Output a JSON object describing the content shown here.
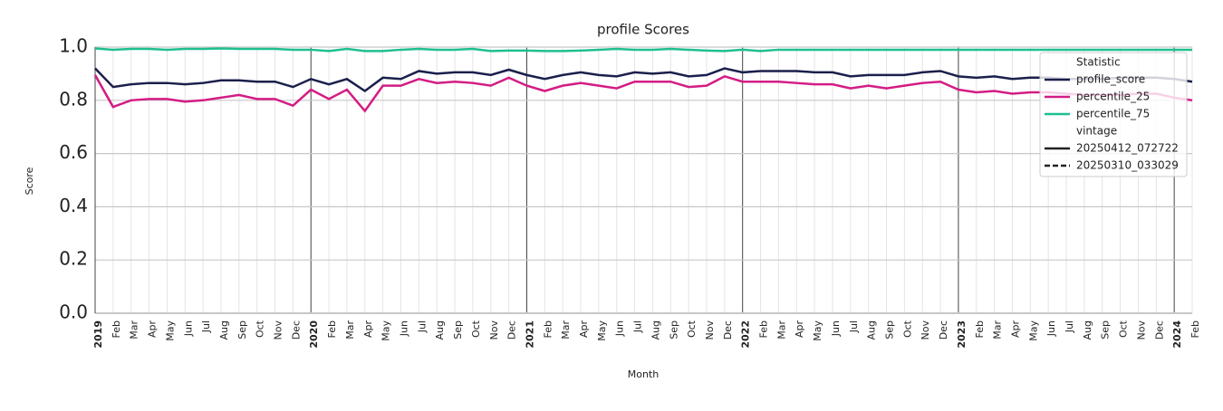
{
  "chart_data": {
    "type": "line",
    "title": "profile Scores",
    "x_label": "Month",
    "y_label": "Score",
    "categories": [
      "2019",
      "Feb",
      "Mar",
      "Apr",
      "May",
      "Jun",
      "Jul",
      "Aug",
      "Sep",
      "Oct",
      "Nov",
      "Dec",
      "2020",
      "Feb",
      "Mar",
      "Apr",
      "May",
      "Jun",
      "Jul",
      "Aug",
      "Sep",
      "Oct",
      "Nov",
      "Dec",
      "2021",
      "Feb",
      "Mar",
      "Apr",
      "May",
      "Jun",
      "Jul",
      "Aug",
      "Sep",
      "Oct",
      "Nov",
      "Dec",
      "2022",
      "Feb",
      "Mar",
      "Apr",
      "May",
      "Jun",
      "Jul",
      "Aug",
      "Sep",
      "Oct",
      "Nov",
      "Dec",
      "2023",
      "Feb",
      "Mar",
      "Apr",
      "May",
      "Jun",
      "Jul",
      "Aug",
      "Sep",
      "Oct",
      "Nov",
      "Dec",
      "2024",
      "Feb"
    ],
    "series": [
      {
        "name": "profile_score",
        "color": "#1b1f4b",
        "values": [
          0.92,
          0.85,
          0.86,
          0.865,
          0.865,
          0.86,
          0.865,
          0.875,
          0.875,
          0.87,
          0.87,
          0.85,
          0.88,
          0.86,
          0.88,
          0.835,
          0.885,
          0.88,
          0.91,
          0.9,
          0.905,
          0.905,
          0.895,
          0.915,
          0.895,
          0.88,
          0.895,
          0.905,
          0.895,
          0.89,
          0.905,
          0.9,
          0.905,
          0.89,
          0.895,
          0.92,
          0.905,
          0.91,
          0.91,
          0.91,
          0.905,
          0.905,
          0.89,
          0.895,
          0.895,
          0.895,
          0.905,
          0.91,
          0.89,
          0.885,
          0.89,
          0.88,
          0.885,
          0.885,
          0.88,
          0.88,
          0.88,
          0.885,
          0.885,
          0.885,
          0.88,
          0.87
        ]
      },
      {
        "name": "percentile_25",
        "color": "#d41c84",
        "values": [
          0.895,
          0.775,
          0.8,
          0.805,
          0.805,
          0.795,
          0.8,
          0.81,
          0.82,
          0.805,
          0.805,
          0.78,
          0.84,
          0.805,
          0.84,
          0.76,
          0.855,
          0.855,
          0.88,
          0.865,
          0.87,
          0.865,
          0.855,
          0.885,
          0.855,
          0.835,
          0.855,
          0.865,
          0.855,
          0.845,
          0.87,
          0.87,
          0.87,
          0.85,
          0.855,
          0.89,
          0.87,
          0.87,
          0.87,
          0.865,
          0.86,
          0.86,
          0.845,
          0.855,
          0.845,
          0.855,
          0.865,
          0.87,
          0.84,
          0.83,
          0.835,
          0.825,
          0.83,
          0.83,
          0.825,
          0.82,
          0.82,
          0.82,
          0.825,
          0.825,
          0.81,
          0.8
        ]
      },
      {
        "name": "percentile_75",
        "color": "#1fbf8f",
        "values": [
          0.995,
          0.99,
          0.993,
          0.993,
          0.99,
          0.993,
          0.993,
          0.995,
          0.993,
          0.993,
          0.993,
          0.99,
          0.99,
          0.985,
          0.993,
          0.985,
          0.985,
          0.99,
          0.993,
          0.99,
          0.99,
          0.993,
          0.985,
          0.987,
          0.987,
          0.985,
          0.985,
          0.987,
          0.99,
          0.993,
          0.99,
          0.99,
          0.993,
          0.99,
          0.987,
          0.985,
          0.99,
          0.985,
          0.99,
          0.99,
          0.99,
          0.99,
          0.99,
          0.99,
          0.99,
          0.99,
          0.99,
          0.99,
          0.99,
          0.99,
          0.99,
          0.99,
          0.99,
          0.99,
          0.99,
          0.99,
          0.99,
          0.99,
          0.99,
          0.99,
          0.99,
          0.99
        ]
      }
    ],
    "ylim": [
      0,
      1
    ],
    "yticks": [
      {
        "value": 0,
        "label": "0.0"
      },
      0.2,
      0.4,
      0.6,
      0.8,
      {
        "value": 1,
        "label": "1.0"
      }
    ],
    "grid": true,
    "legend_position": "upper right",
    "legend": {
      "title": "Statistic",
      "vintage_title": "vintage",
      "vintages": [
        {
          "name": "20250412_072722",
          "dashed": false
        },
        {
          "name": "20250310_033029",
          "dashed": true
        }
      ]
    }
  }
}
